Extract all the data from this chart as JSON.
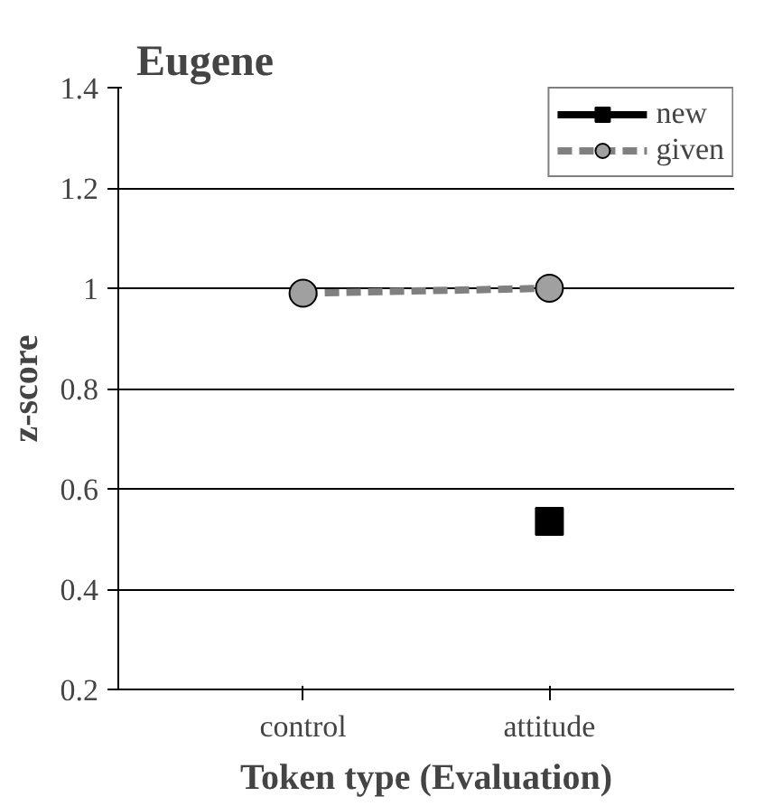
{
  "chart_data": {
    "type": "line",
    "title": "Eugene",
    "xlabel": "Token type (Evaluation)",
    "ylabel": "z-score",
    "categories": [
      "control",
      "attitude"
    ],
    "series": [
      {
        "name": "new",
        "color": "#000000",
        "values": [
          null,
          0.535
        ],
        "marker": "square",
        "line_style": "solid"
      },
      {
        "name": "given",
        "color": "#808080",
        "values": [
          0.99,
          1.0
        ],
        "marker": "circle",
        "line_style": "dashed"
      }
    ],
    "ylim": [
      0.2,
      1.4
    ],
    "yticks": [
      0.2,
      0.4,
      0.6,
      0.8,
      1,
      1.2,
      1.4
    ],
    "grid": "y",
    "legend": "top right"
  }
}
